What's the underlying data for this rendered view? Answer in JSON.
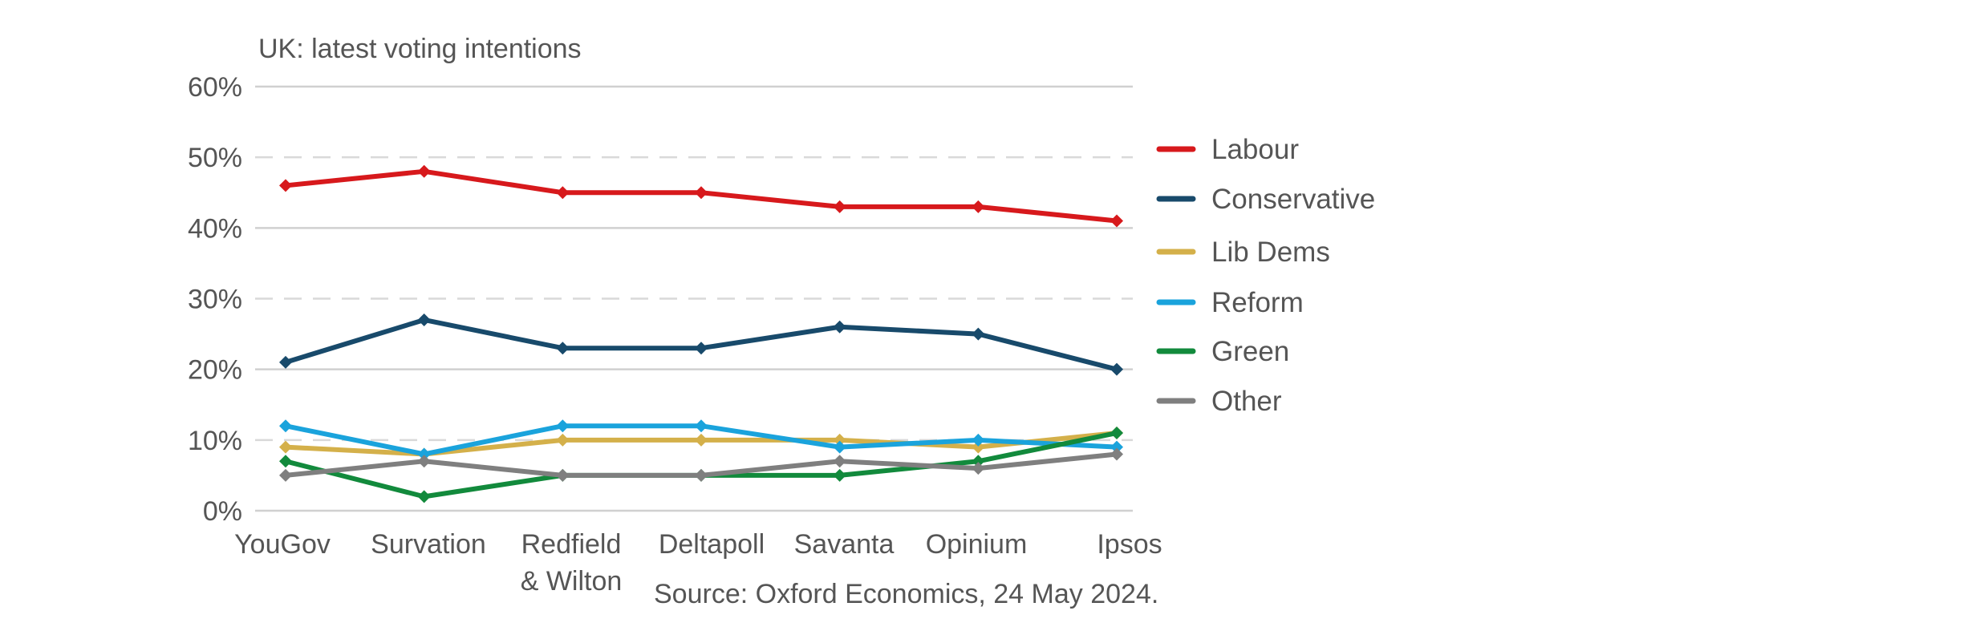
{
  "chart_data": {
    "type": "line",
    "title": "UK: latest voting intentions",
    "categories": [
      [
        "YouGov"
      ],
      [
        "Survation"
      ],
      [
        "Redfield",
        "& Wilton"
      ],
      [
        "Deltapoll"
      ],
      [
        "Savanta"
      ],
      [
        "Opinium"
      ],
      [
        "Ipsos"
      ]
    ],
    "y_ticks": [
      "0%",
      "10%",
      "20%",
      "30%",
      "40%",
      "50%",
      "60%"
    ],
    "ylim": [
      0,
      60
    ],
    "y_unit": "%",
    "grid": "horizontal; dashed at 10%, 30%, 50%",
    "legend_position": "right",
    "series": [
      {
        "name": "Labour",
        "color": "#d7191c",
        "values": [
          46,
          48,
          45,
          45,
          43,
          43,
          41
        ]
      },
      {
        "name": "Conservative",
        "color": "#184a6b",
        "values": [
          21,
          27,
          23,
          23,
          26,
          25,
          20
        ]
      },
      {
        "name": "Lib Dems",
        "color": "#d4b04a",
        "values": [
          9,
          8,
          10,
          10,
          10,
          9,
          11
        ]
      },
      {
        "name": "Reform",
        "color": "#1aa3dc",
        "values": [
          12,
          8,
          12,
          12,
          9,
          10,
          9
        ]
      },
      {
        "name": "Green",
        "color": "#128a3c",
        "values": [
          7,
          2,
          5,
          5,
          5,
          7,
          11
        ]
      },
      {
        "name": "Other",
        "color": "#7f7f7f",
        "values": [
          5,
          7,
          5,
          5,
          7,
          6,
          8
        ]
      }
    ],
    "source": "Source: Oxford Economics, 24 May 2024."
  }
}
